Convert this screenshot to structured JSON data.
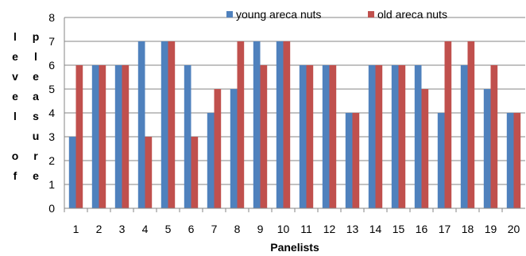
{
  "chart_data": {
    "type": "bar",
    "xlabel": "Panelists",
    "ylabel_columns": [
      [
        "l",
        "e",
        "v",
        "e",
        "l",
        "",
        "o",
        "f"
      ],
      [
        "p",
        "l",
        "e",
        "a",
        "s",
        "u",
        "r",
        "e"
      ]
    ],
    "categories": [
      "1",
      "2",
      "3",
      "4",
      "5",
      "6",
      "7",
      "8",
      "9",
      "10",
      "11",
      "12",
      "13",
      "14",
      "15",
      "16",
      "17",
      "18",
      "19",
      "20"
    ],
    "series": [
      {
        "name": "young areca nuts",
        "color": "#4f81bd",
        "values": [
          3,
          6,
          6,
          7,
          7,
          6,
          4,
          5,
          7,
          7,
          6,
          6,
          4,
          6,
          6,
          6,
          4,
          6,
          5,
          4
        ]
      },
      {
        "name": "old areca nuts",
        "color": "#c0504d",
        "values": [
          6,
          6,
          6,
          3,
          7,
          3,
          5,
          7,
          6,
          7,
          6,
          6,
          4,
          6,
          6,
          5,
          7,
          7,
          6,
          4
        ]
      }
    ],
    "ylim": [
      0,
      8
    ],
    "yticks": [
      0,
      1,
      2,
      3,
      4,
      5,
      6,
      7,
      8
    ],
    "grid": "horizontal",
    "legend_position": "top-right"
  }
}
